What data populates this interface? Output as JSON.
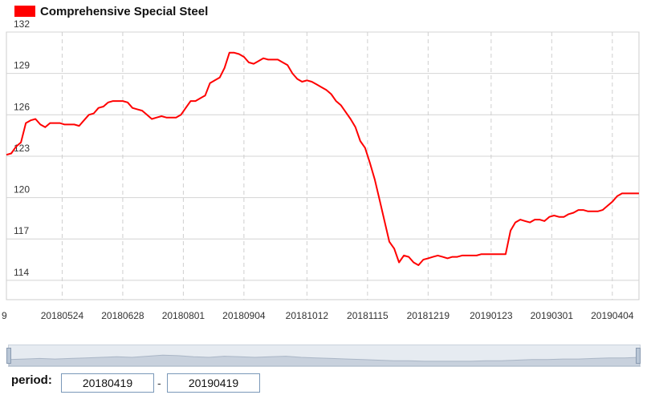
{
  "legend": {
    "label": "Comprehensive Special Steel",
    "color": "#ff0000"
  },
  "period": {
    "label": "period:",
    "start": "20180419",
    "end": "20190419",
    "separator": "-"
  },
  "slider_trace": [
    0.3,
    0.35,
    0.4,
    0.35,
    0.4,
    0.45,
    0.5,
    0.55,
    0.5,
    0.6,
    0.7,
    0.65,
    0.55,
    0.5,
    0.6,
    0.55,
    0.5,
    0.55,
    0.6,
    0.5,
    0.45,
    0.4,
    0.35,
    0.3,
    0.25,
    0.2,
    0.2,
    0.15,
    0.15,
    0.15,
    0.15,
    0.2,
    0.2,
    0.25,
    0.3,
    0.3,
    0.35,
    0.35,
    0.4,
    0.45,
    0.45,
    0.5
  ],
  "chart_data": {
    "type": "line",
    "x_first_cut": "9",
    "xticks": [
      "20180524",
      "20180628",
      "20180801",
      "20180904",
      "20181012",
      "20181115",
      "20181219",
      "20190123",
      "20190301",
      "20190404"
    ],
    "xtick_index": [
      23,
      48,
      73,
      98,
      124,
      149,
      174,
      200,
      225,
      250
    ],
    "n_points": 262,
    "ylim": [
      112.6,
      132
    ],
    "yticks": [
      114,
      117,
      120,
      123,
      126,
      129,
      132
    ],
    "grid": true,
    "series": [
      {
        "name": "Comprehensive Special Steel",
        "color": "#ff0000",
        "points": [
          [
            0,
            123.1
          ],
          [
            2,
            123.2
          ],
          [
            4,
            123.7
          ],
          [
            6,
            124
          ],
          [
            8,
            125.4
          ],
          [
            10,
            125.6
          ],
          [
            12,
            125.7
          ],
          [
            14,
            125.3
          ],
          [
            16,
            125.1
          ],
          [
            18,
            125.4
          ],
          [
            20,
            125.4
          ],
          [
            22,
            125.4
          ],
          [
            24,
            125.3
          ],
          [
            26,
            125.3
          ],
          [
            28,
            125.3
          ],
          [
            30,
            125.2
          ],
          [
            32,
            125.6
          ],
          [
            34,
            126
          ],
          [
            36,
            126.1
          ],
          [
            38,
            126.5
          ],
          [
            40,
            126.6
          ],
          [
            42,
            126.9
          ],
          [
            44,
            127
          ],
          [
            46,
            127
          ],
          [
            48,
            127
          ],
          [
            50,
            126.9
          ],
          [
            52,
            126.5
          ],
          [
            54,
            126.4
          ],
          [
            56,
            126.3
          ],
          [
            58,
            126
          ],
          [
            60,
            125.7
          ],
          [
            62,
            125.8
          ],
          [
            64,
            125.9
          ],
          [
            66,
            125.8
          ],
          [
            68,
            125.8
          ],
          [
            70,
            125.8
          ],
          [
            72,
            126
          ],
          [
            74,
            126.5
          ],
          [
            76,
            127
          ],
          [
            78,
            127
          ],
          [
            80,
            127.2
          ],
          [
            82,
            127.4
          ],
          [
            84,
            128.3
          ],
          [
            86,
            128.5
          ],
          [
            88,
            128.7
          ],
          [
            90,
            129.4
          ],
          [
            92,
            130.5
          ],
          [
            94,
            130.5
          ],
          [
            96,
            130.4
          ],
          [
            98,
            130.2
          ],
          [
            100,
            129.8
          ],
          [
            102,
            129.7
          ],
          [
            104,
            129.9
          ],
          [
            106,
            130.1
          ],
          [
            108,
            130
          ],
          [
            110,
            130
          ],
          [
            112,
            130
          ],
          [
            114,
            129.8
          ],
          [
            116,
            129.6
          ],
          [
            118,
            129
          ],
          [
            120,
            128.6
          ],
          [
            122,
            128.4
          ],
          [
            124,
            128.5
          ],
          [
            126,
            128.4
          ],
          [
            128,
            128.2
          ],
          [
            130,
            128
          ],
          [
            132,
            127.8
          ],
          [
            134,
            127.5
          ],
          [
            136,
            127
          ],
          [
            138,
            126.7
          ],
          [
            140,
            126.2
          ],
          [
            142,
            125.7
          ],
          [
            144,
            125.1
          ],
          [
            146,
            124.1
          ],
          [
            148,
            123.6
          ],
          [
            150,
            122.5
          ],
          [
            152,
            121.3
          ],
          [
            154,
            119.8
          ],
          [
            156,
            118.3
          ],
          [
            158,
            116.8
          ],
          [
            160,
            116.3
          ],
          [
            162,
            115.3
          ],
          [
            164,
            115.8
          ],
          [
            166,
            115.7
          ],
          [
            168,
            115.3
          ],
          [
            170,
            115.1
          ],
          [
            172,
            115.5
          ],
          [
            174,
            115.6
          ],
          [
            176,
            115.7
          ],
          [
            178,
            115.8
          ],
          [
            180,
            115.7
          ],
          [
            182,
            115.6
          ],
          [
            184,
            115.7
          ],
          [
            186,
            115.7
          ],
          [
            188,
            115.8
          ],
          [
            190,
            115.8
          ],
          [
            192,
            115.8
          ],
          [
            194,
            115.8
          ],
          [
            196,
            115.9
          ],
          [
            198,
            115.9
          ],
          [
            200,
            115.9
          ],
          [
            202,
            115.9
          ],
          [
            204,
            115.9
          ],
          [
            206,
            115.9
          ],
          [
            208,
            117.6
          ],
          [
            210,
            118.2
          ],
          [
            212,
            118.4
          ],
          [
            214,
            118.3
          ],
          [
            216,
            118.2
          ],
          [
            218,
            118.4
          ],
          [
            220,
            118.4
          ],
          [
            222,
            118.3
          ],
          [
            224,
            118.6
          ],
          [
            226,
            118.7
          ],
          [
            228,
            118.6
          ],
          [
            230,
            118.6
          ],
          [
            232,
            118.8
          ],
          [
            234,
            118.9
          ],
          [
            236,
            119.1
          ],
          [
            238,
            119.1
          ],
          [
            240,
            119
          ],
          [
            242,
            119
          ],
          [
            244,
            119
          ],
          [
            246,
            119.1
          ],
          [
            248,
            119.4
          ],
          [
            250,
            119.7
          ],
          [
            252,
            120.1
          ],
          [
            254,
            120.3
          ],
          [
            256,
            120.3
          ],
          [
            258,
            120.3
          ],
          [
            260,
            120.3
          ],
          [
            261,
            120.3
          ]
        ]
      }
    ]
  }
}
